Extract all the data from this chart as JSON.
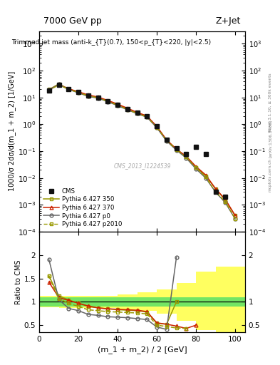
{
  "title_left": "7000 GeV pp",
  "title_right": "Z+Jet",
  "annotation": "Trimmed jet mass (anti-k_{T}(0.7), 150<p_{T}<220, |y|<2.5)",
  "cms_label": "CMS_2013_I1224539",
  "rivet_label": "Rivet 3.1.10, ≥ 300k events",
  "arxiv_label": "[arXiv:1306.3436]",
  "mcplots_label": "mcplots.cern.ch",
  "ylabel_main": "1000/σ 2dσ/d(m_1 + m_2) [1/GeV]",
  "ylabel_ratio": "Ratio to CMS",
  "xlabel": "(m_1 + m_2) / 2 [GeV]",
  "xlim": [
    0,
    105
  ],
  "ylim_main": [
    0.0001,
    3000.0
  ],
  "ylim_ratio": [
    0.35,
    2.5
  ],
  "x_cms": [
    5,
    10,
    15,
    20,
    25,
    30,
    35,
    40,
    45,
    50,
    55,
    60,
    65,
    70,
    75,
    80,
    85,
    90,
    95
  ],
  "y_cms": [
    18,
    30,
    20,
    16,
    12,
    10,
    7.5,
    5.5,
    3.8,
    2.7,
    2.0,
    0.85,
    0.27,
    0.13,
    0.08,
    0.15,
    0.08,
    0.003,
    0.002
  ],
  "x_mc": [
    5,
    10,
    15,
    20,
    25,
    30,
    35,
    40,
    45,
    50,
    55,
    60,
    65,
    70,
    75,
    80,
    85,
    90,
    95,
    100
  ],
  "y_350": [
    20,
    32,
    21,
    16,
    12,
    10,
    7.5,
    5.5,
    3.8,
    2.7,
    2.0,
    0.82,
    0.26,
    0.12,
    0.06,
    0.025,
    0.012,
    0.004,
    0.0015,
    0.0004
  ],
  "y_370": [
    19,
    31,
    21,
    16.5,
    12.5,
    10.5,
    7.8,
    5.7,
    4.0,
    2.8,
    2.05,
    0.84,
    0.265,
    0.12,
    0.065,
    0.027,
    0.013,
    0.004,
    0.0016,
    0.0004
  ],
  "y_p0": [
    19,
    31,
    20,
    15,
    11,
    9.5,
    7.0,
    5.0,
    3.5,
    2.5,
    1.85,
    0.75,
    0.24,
    0.11,
    0.056,
    0.022,
    0.01,
    0.003,
    0.0012,
    0.0003
  ],
  "y_p2010": [
    18,
    30,
    20,
    15.5,
    11.5,
    9.8,
    7.2,
    5.2,
    3.6,
    2.55,
    1.9,
    0.78,
    0.25,
    0.115,
    0.06,
    0.024,
    0.011,
    0.003,
    0.0013,
    0.0003
  ],
  "ratio_x": [
    5,
    10,
    15,
    20,
    25,
    30,
    35,
    40,
    45,
    50,
    55,
    60,
    65,
    70,
    75,
    80,
    85,
    90,
    95,
    100
  ],
  "ratio_350": [
    1.55,
    1.13,
    1.04,
    0.97,
    0.9,
    0.87,
    0.85,
    0.83,
    0.82,
    0.81,
    0.78,
    0.54,
    0.52,
    1.0,
    null,
    null,
    null,
    null,
    null,
    null
  ],
  "ratio_370": [
    1.42,
    1.09,
    1.03,
    0.97,
    0.91,
    0.87,
    0.85,
    0.84,
    0.83,
    0.82,
    0.79,
    0.55,
    0.52,
    0.48,
    0.43,
    0.5,
    null,
    null,
    null,
    null
  ],
  "ratio_p0": [
    1.9,
    1.05,
    0.86,
    0.81,
    0.73,
    0.71,
    0.68,
    0.67,
    0.66,
    0.64,
    0.62,
    0.46,
    0.41,
    1.95,
    null,
    null,
    null,
    null,
    null,
    null
  ],
  "ratio_p2010": [
    1.55,
    1.06,
    0.97,
    0.9,
    0.83,
    0.81,
    0.79,
    0.78,
    0.77,
    0.76,
    0.74,
    0.5,
    0.47,
    0.44,
    0.43,
    null,
    null,
    null,
    null,
    null
  ],
  "color_350": "#999900",
  "color_370": "#cc2200",
  "color_p0": "#666666",
  "color_p2010": "#999900",
  "color_cms": "#111111",
  "yellow_edges": [
    0,
    10,
    20,
    30,
    40,
    50,
    60,
    70,
    80,
    90,
    105
  ],
  "yellow_lo": [
    0.88,
    0.875,
    0.875,
    0.87,
    0.84,
    0.8,
    0.74,
    0.6,
    0.4,
    0.3
  ],
  "yellow_hi": [
    1.12,
    1.125,
    1.125,
    1.13,
    1.16,
    1.2,
    1.26,
    1.4,
    1.65,
    1.75
  ],
  "green_lo": 0.9,
  "green_hi": 1.1
}
